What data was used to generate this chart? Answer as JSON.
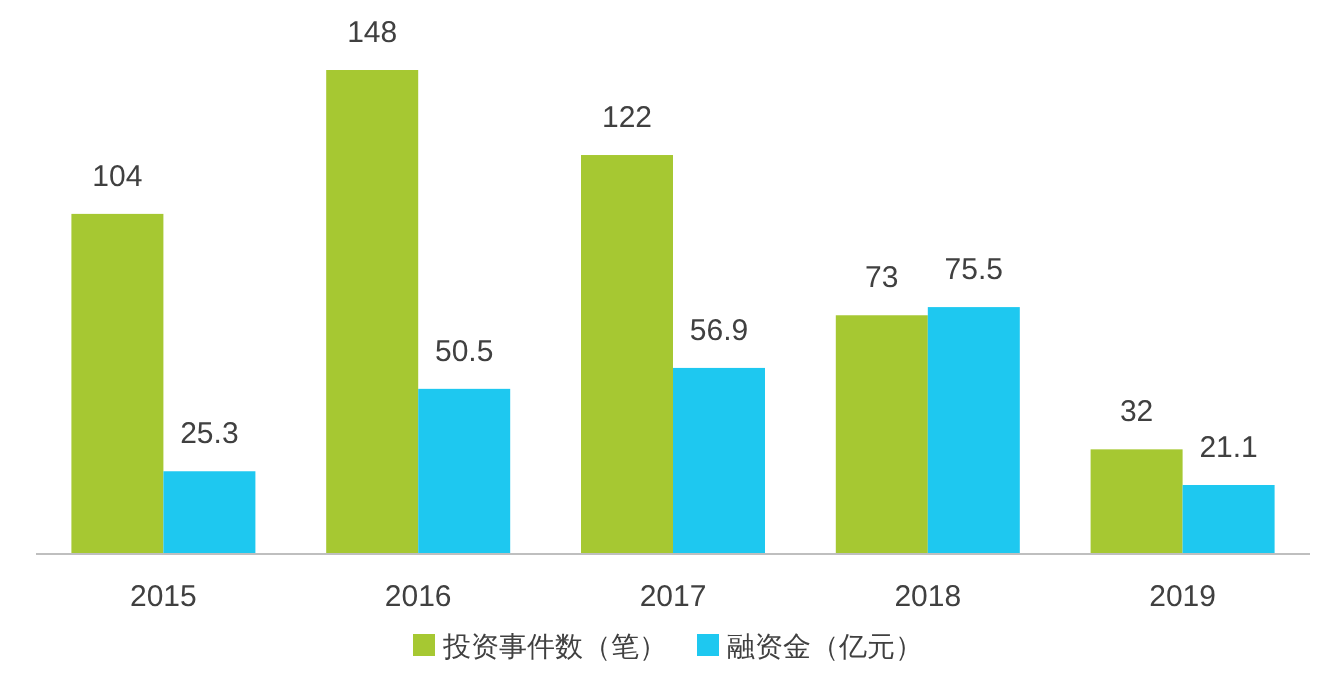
{
  "chart_data": {
    "type": "bar",
    "categories": [
      "2015",
      "2016",
      "2017",
      "2018",
      "2019"
    ],
    "series": [
      {
        "name": "投资事件数（笔）",
        "color": "#a6c832",
        "values": [
          104,
          148,
          122,
          73,
          32
        ]
      },
      {
        "name": "融资金（亿元）",
        "color": "#1ec8f0",
        "values": [
          25.3,
          50.5,
          56.9,
          75.5,
          21.1
        ]
      }
    ],
    "data_labels": true,
    "legend": "bottom"
  }
}
